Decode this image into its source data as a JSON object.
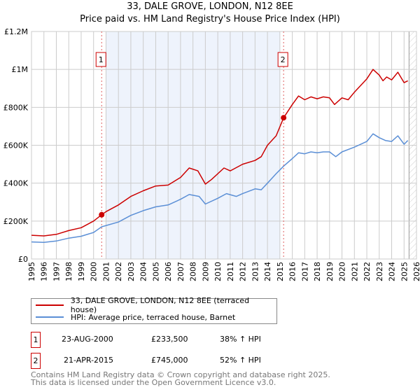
{
  "title": "33, DALE GROVE, LONDON, N12 8EE",
  "subtitle": "Price paid vs. HM Land Registry's House Price Index (HPI)",
  "colors": {
    "price": "#cc0000",
    "hpi": "#5b8fd6",
    "shade": "#eef3fc"
  },
  "chart_data": {
    "type": "line",
    "title": "33, DALE GROVE, LONDON, N12 8EE",
    "xlim": [
      1995,
      2026
    ],
    "ylim": [
      0,
      1200000
    ],
    "x_ticks": [
      "1995",
      "1996",
      "1997",
      "1998",
      "1999",
      "2000",
      "2001",
      "2002",
      "2003",
      "2004",
      "2005",
      "2006",
      "2007",
      "2008",
      "2009",
      "2010",
      "2011",
      "2012",
      "2013",
      "2014",
      "2015",
      "2016",
      "2017",
      "2018",
      "2019",
      "2020",
      "2021",
      "2022",
      "2023",
      "2024",
      "2025",
      "2026"
    ],
    "y_ticks": [
      {
        "v": 0,
        "label": "£0"
      },
      {
        "v": 200000,
        "label": "£200K"
      },
      {
        "v": 400000,
        "label": "£400K"
      },
      {
        "v": 600000,
        "label": "£600K"
      },
      {
        "v": 800000,
        "label": "£800K"
      },
      {
        "v": 1000000,
        "label": "£1M"
      },
      {
        "v": 1200000,
        "label": "£1.2M"
      }
    ],
    "grid": true,
    "shaded_range": [
      2001,
      2015
    ],
    "hatched_from": 2025.4,
    "series": [
      {
        "name": "33, DALE GROVE, LONDON, N12 8EE (terraced house)",
        "key": "price",
        "x": [
          1995,
          1996,
          1997,
          1998,
          1999,
          2000,
          2000.65,
          2001,
          2002,
          2003,
          2004,
          2005,
          2006,
          2007,
          2007.7,
          2008.4,
          2009.0,
          2009.5,
          2010.5,
          2011,
          2012,
          2013,
          2013.5,
          2014,
          2014.7,
          2015.3,
          2016,
          2016.5,
          2017,
          2017.5,
          2018,
          2018.5,
          2019,
          2019.4,
          2020,
          2020.5,
          2021,
          2022,
          2022.5,
          2023,
          2023.3,
          2023.6,
          2024,
          2024.5,
          2025,
          2025.3
        ],
        "y": [
          125000,
          122000,
          130000,
          150000,
          165000,
          200000,
          233500,
          250000,
          285000,
          330000,
          360000,
          385000,
          390000,
          430000,
          480000,
          465000,
          395000,
          420000,
          480000,
          465000,
          500000,
          520000,
          540000,
          600000,
          650000,
          745000,
          815000,
          860000,
          840000,
          855000,
          845000,
          855000,
          850000,
          815000,
          850000,
          840000,
          880000,
          950000,
          1000000,
          970000,
          940000,
          960000,
          945000,
          985000,
          930000,
          940000
        ]
      },
      {
        "name": "HPI: Average price, terraced house, Barnet",
        "key": "hpi",
        "x": [
          1995,
          1996,
          1997,
          1998,
          1999,
          2000,
          2000.65,
          2002,
          2003,
          2004,
          2005,
          2006,
          2007,
          2007.7,
          2008.5,
          2009.0,
          2010,
          2010.7,
          2011.5,
          2012,
          2013,
          2013.5,
          2014,
          2014.7,
          2015.3,
          2016,
          2016.5,
          2017,
          2017.5,
          2018,
          2018.5,
          2019,
          2019.5,
          2020,
          2021,
          2022,
          2022.5,
          2023,
          2023.5,
          2024,
          2024.5,
          2025,
          2025.3
        ],
        "y": [
          90000,
          88000,
          95000,
          110000,
          120000,
          140000,
          170000,
          195000,
          230000,
          255000,
          275000,
          285000,
          315000,
          340000,
          330000,
          290000,
          320000,
          345000,
          330000,
          345000,
          370000,
          365000,
          400000,
          450000,
          490000,
          530000,
          560000,
          555000,
          565000,
          560000,
          565000,
          565000,
          540000,
          565000,
          590000,
          620000,
          660000,
          640000,
          625000,
          620000,
          650000,
          605000,
          625000
        ]
      }
    ],
    "annotations": [
      {
        "label": "1",
        "x": 2000.65,
        "y": 233500
      },
      {
        "label": "2",
        "x": 2015.3,
        "y": 745000
      }
    ]
  },
  "legend": {
    "price_label": "33, DALE GROVE, LONDON, N12 8EE (terraced house)",
    "hpi_label": "HPI: Average price, terraced house, Barnet"
  },
  "transactions": [
    {
      "num": "1",
      "date": "23-AUG-2000",
      "price": "£233,500",
      "delta": "38% ↑ HPI"
    },
    {
      "num": "2",
      "date": "21-APR-2015",
      "price": "£745,000",
      "delta": "52% ↑ HPI"
    }
  ],
  "footer": {
    "line1": "Contains HM Land Registry data © Crown copyright and database right 2025.",
    "line2": "This data is licensed under the Open Government Licence v3.0."
  }
}
